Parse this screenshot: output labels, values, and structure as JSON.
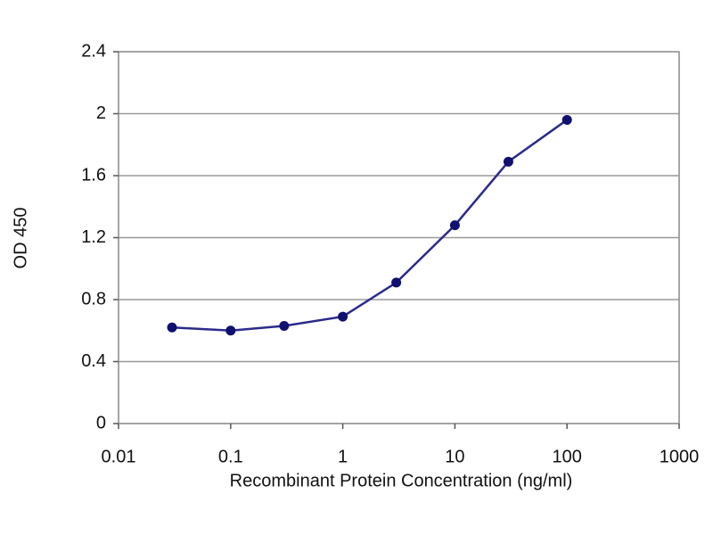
{
  "chart_data": {
    "type": "line",
    "x_label": "Recombinant Protein Concentration (ng/ml)",
    "y_label": "OD 450",
    "x": [
      0.03,
      0.1,
      0.3,
      1,
      3,
      10,
      30,
      100
    ],
    "values": [
      0.62,
      0.6,
      0.63,
      0.69,
      0.91,
      1.28,
      1.69,
      1.96
    ],
    "color": "#2b2b8c",
    "marker_color": "#101070",
    "x_scale": "log",
    "xlim": [
      0.01,
      1000
    ],
    "xticks": [
      0.01,
      0.1,
      1,
      10,
      100,
      1000
    ],
    "ylim": [
      0,
      2.4
    ],
    "yticks": [
      0,
      0.4,
      0.8,
      1.2,
      1.6,
      2,
      2.4
    ],
    "grid": true
  }
}
